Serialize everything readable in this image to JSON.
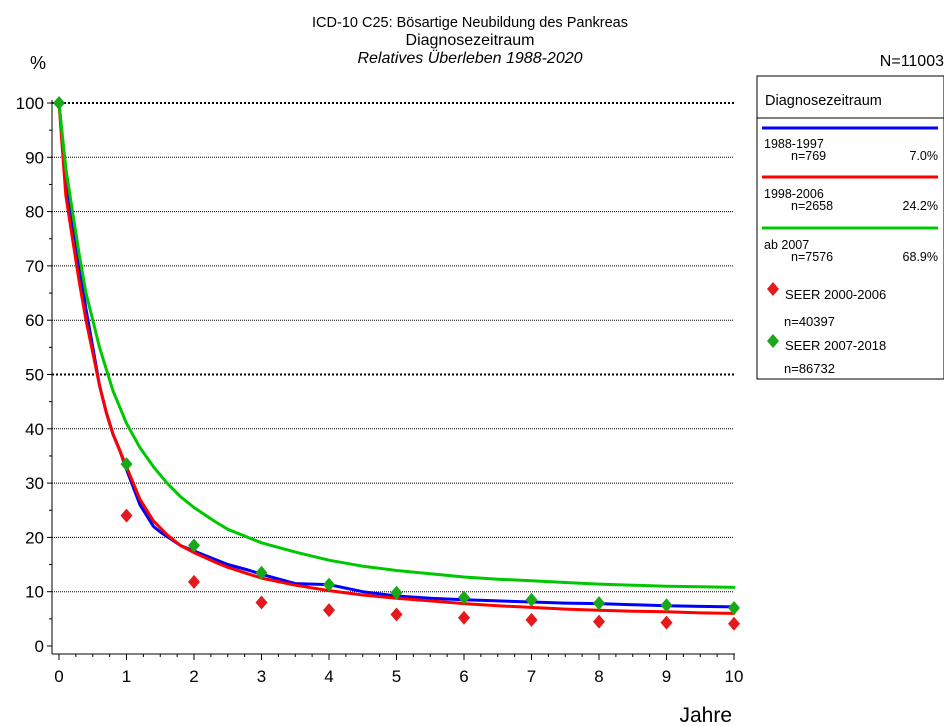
{
  "chart_data": {
    "type": "line",
    "title": "ICD-10 C25: Bösartige Neubildung des Pankreas",
    "subtitle": "Diagnosezeitraum",
    "subtitle2": "Relatives Überleben 1988-2020",
    "n_total": "N=11003",
    "ylabel": "%",
    "xlabel": "Jahre",
    "xlim": [
      0,
      10
    ],
    "ylim": [
      0,
      100
    ],
    "x_ticks": [
      "0",
      "1",
      "2",
      "3",
      "4",
      "5",
      "6",
      "7",
      "8",
      "9",
      "10"
    ],
    "y_ticks": [
      "0",
      "10",
      "20",
      "30",
      "40",
      "50",
      "60",
      "70",
      "80",
      "90",
      "100"
    ],
    "grid": "horizontal dotted",
    "legend_title": "Diagnosezeitraum",
    "legend_placement": "right",
    "series": [
      {
        "name": "1988-1997",
        "n": "n=769",
        "share": "7.0%",
        "color": "#0000ff",
        "x": [
          0,
          0.1,
          0.2,
          0.3,
          0.4,
          0.5,
          0.6,
          0.7,
          0.8,
          0.9,
          1.0,
          1.2,
          1.4,
          1.5,
          1.8,
          2.0,
          2.3,
          2.5,
          2.8,
          3.0,
          3.5,
          4.0,
          4.5,
          5.0,
          5.5,
          6.0,
          6.5,
          7.0,
          7.5,
          8.0,
          8.5,
          9.0,
          9.5,
          10.0
        ],
        "values": [
          100,
          86,
          78,
          70,
          62,
          55,
          48,
          43,
          39,
          36,
          32.5,
          26,
          22,
          21,
          18.5,
          17.5,
          16,
          15,
          14,
          13.2,
          11.5,
          11.3,
          10,
          9.2,
          8.8,
          8.5,
          8.3,
          8.1,
          7.9,
          7.8,
          7.6,
          7.4,
          7.3,
          7.2
        ]
      },
      {
        "name": "1998-2006",
        "n": "n=2658",
        "share": "24.2%",
        "color": "#ff0000",
        "x": [
          0,
          0.1,
          0.2,
          0.3,
          0.4,
          0.5,
          0.6,
          0.7,
          0.8,
          0.9,
          1.0,
          1.2,
          1.4,
          1.6,
          1.8,
          2.0,
          2.3,
          2.5,
          2.8,
          3.0,
          3.5,
          4.0,
          4.5,
          5.0,
          5.5,
          6.0,
          6.5,
          7.0,
          7.5,
          8.0,
          8.5,
          9.0,
          9.5,
          10.0
        ],
        "values": [
          100,
          83,
          75,
          67,
          60,
          54,
          48,
          43,
          39,
          36,
          33,
          27,
          23,
          20.5,
          18.5,
          17.2,
          15.5,
          14.5,
          13.3,
          12.5,
          11.2,
          10.2,
          9.4,
          8.8,
          8.3,
          7.8,
          7.4,
          7.1,
          6.8,
          6.6,
          6.4,
          6.3,
          6.1,
          6.0
        ]
      },
      {
        "name": "ab 2007",
        "n": "n=7576",
        "share": "68.9%",
        "color": "#00c800",
        "x": [
          0,
          0.1,
          0.2,
          0.3,
          0.4,
          0.5,
          0.6,
          0.8,
          1.0,
          1.2,
          1.4,
          1.6,
          1.8,
          2.0,
          2.3,
          2.5,
          2.8,
          3.0,
          3.5,
          4.0,
          4.5,
          5.0,
          5.5,
          6.0,
          6.5,
          7.0,
          7.5,
          8.0,
          8.5,
          9.0,
          9.5,
          10.0
        ],
        "values": [
          100,
          88,
          80,
          72,
          65,
          60,
          55,
          47,
          41,
          36.5,
          33,
          30,
          27.5,
          25.5,
          23,
          21.5,
          20,
          19,
          17.3,
          15.8,
          14.7,
          13.9,
          13.3,
          12.7,
          12.3,
          12,
          11.7,
          11.4,
          11.2,
          11.0,
          10.9,
          10.8
        ]
      }
    ],
    "markers": [
      {
        "name": "SEER 2000-2006",
        "n": "n=40397",
        "color": "#e41a1c",
        "x": [
          1,
          2,
          3,
          4,
          5,
          6,
          7,
          8,
          9,
          10
        ],
        "values": [
          24,
          11.8,
          8,
          6.6,
          5.8,
          5.2,
          4.8,
          4.5,
          4.3,
          4.1
        ]
      },
      {
        "name": "SEER 2007-2018",
        "n": "n=86732",
        "color": "#1aa81a",
        "x": [
          0,
          1,
          2,
          3,
          4,
          5,
          6,
          7,
          8,
          9,
          10
        ],
        "values": [
          100,
          33.5,
          18.5,
          13.5,
          11.3,
          9.8,
          8.9,
          8.5,
          7.9,
          7.5,
          7.0
        ]
      }
    ]
  }
}
